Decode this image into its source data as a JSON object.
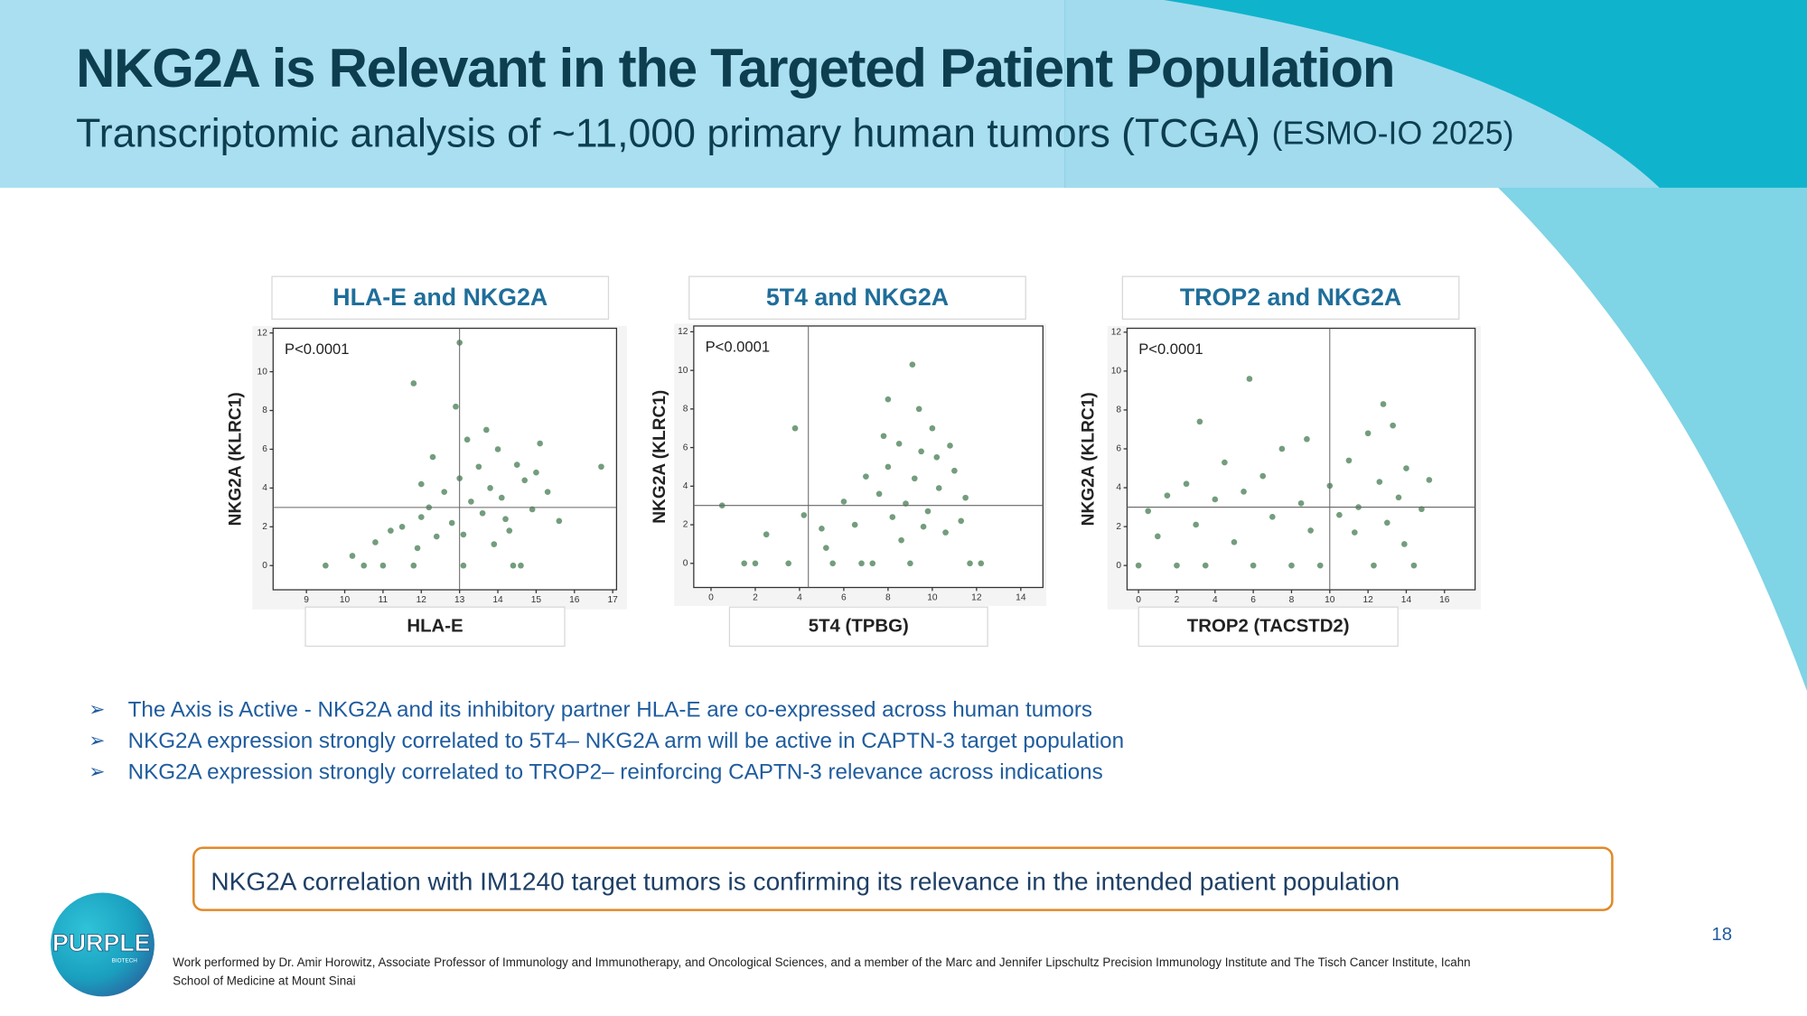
{
  "header": {
    "title": "NKG2A is Relevant in the Targeted Patient Population",
    "subtitle": "Transcriptomic analysis of ~11,000 primary human tumors (TCGA)",
    "subtitle_note": "(ESMO-IO 2025)"
  },
  "chart_data": [
    {
      "type": "scatter",
      "title": "HLA-E and NKG2A",
      "x_label": "HLA-E",
      "y_label": "NKG2A (KLRC1)",
      "annotation": "P<0.0001",
      "color": "#5b8c66",
      "xlim": [
        8.13,
        17.1
      ],
      "ylim": [
        -1.25,
        12.24
      ],
      "xticks": [
        9,
        10,
        11,
        12,
        13,
        14,
        15,
        16,
        17
      ],
      "yticks": [
        0,
        2,
        4,
        6,
        8,
        10,
        12
      ],
      "thresholds": {
        "x": 13,
        "y": 3
      },
      "x": [
        9.5,
        10.2,
        10.8,
        11.2,
        11.5,
        11.8,
        12.0,
        12.2,
        12.4,
        12.6,
        12.8,
        13.0,
        13.1,
        13.3,
        13.5,
        13.6,
        13.8,
        14.0,
        14.1,
        14.3,
        14.5,
        14.7,
        14.9,
        15.1,
        15.3,
        15.6,
        11.0,
        12.3,
        13.2,
        13.9,
        14.6,
        15.0,
        12.9,
        13.7,
        14.4,
        10.5,
        11.8,
        13.0,
        14.2,
        12.0,
        16.7,
        11.9,
        13.1
      ],
      "values": [
        0,
        0.5,
        1.2,
        1.8,
        2.0,
        0,
        2.5,
        3.0,
        1.5,
        3.8,
        2.2,
        4.5,
        0,
        3.3,
        5.1,
        2.7,
        4.0,
        6.0,
        3.5,
        1.8,
        5.2,
        4.4,
        2.9,
        6.3,
        3.8,
        2.3,
        0,
        5.6,
        6.5,
        1.1,
        0,
        4.8,
        8.2,
        7.0,
        0,
        0,
        9.4,
        11.5,
        2.4,
        4.2,
        5.1,
        0.9,
        1.6
      ]
    },
    {
      "type": "scatter",
      "title": "5T4 and NKG2A",
      "x_label": "5T4 (TPBG)",
      "y_label": "NKG2A (KLRC1)",
      "annotation": "P<0.0001",
      "color": "#5b8c66",
      "xlim": [
        -0.78,
        15.0
      ],
      "ylim": [
        -1.25,
        12.3
      ],
      "xticks": [
        0,
        2,
        4,
        6,
        8,
        10,
        12,
        14
      ],
      "yticks": [
        0,
        2,
        4,
        6,
        8,
        10,
        12
      ],
      "thresholds": {
        "x": 4.4,
        "y": 3
      },
      "x": [
        0.5,
        1.5,
        2.5,
        3.5,
        4.2,
        5.0,
        5.5,
        6.0,
        6.5,
        7.0,
        7.3,
        7.6,
        8.0,
        8.2,
        8.5,
        8.8,
        9.0,
        9.2,
        9.5,
        9.8,
        10.0,
        10.3,
        10.6,
        11.0,
        11.3,
        11.7,
        12.2,
        7.8,
        8.6,
        9.4,
        10.2,
        3.8,
        6.8,
        9.1,
        11.5,
        8.0,
        10.8,
        5.2,
        9.6,
        2.0
      ],
      "values": [
        3,
        0,
        1.5,
        0,
        2.5,
        1.8,
        0,
        3.2,
        2.0,
        4.5,
        0,
        3.6,
        5.0,
        2.4,
        6.2,
        3.1,
        0,
        4.4,
        5.8,
        2.7,
        7.0,
        3.9,
        1.6,
        4.8,
        2.2,
        0,
        0,
        6.6,
        1.2,
        8.0,
        5.5,
        7.0,
        0,
        10.3,
        3.4,
        8.5,
        6.1,
        0.8,
        1.9,
        0
      ]
    },
    {
      "type": "scatter",
      "title": "TROP2 and NKG2A",
      "x_label": "TROP2 (TACSTD2)",
      "y_label": "NKG2A (KLRC1)",
      "annotation": "P<0.0001",
      "color": "#5b8c66",
      "xlim": [
        -0.6,
        17.6
      ],
      "ylim": [
        -1.25,
        12.2
      ],
      "xticks": [
        0,
        2,
        4,
        6,
        8,
        10,
        12,
        14,
        16
      ],
      "yticks": [
        0,
        2,
        4,
        6,
        8,
        10,
        12
      ],
      "thresholds": {
        "x": 10,
        "y": 3
      },
      "x": [
        0,
        0.5,
        1.0,
        1.5,
        2.0,
        2.5,
        3.0,
        3.5,
        4.0,
        4.5,
        5.0,
        5.5,
        6.0,
        6.5,
        7.0,
        7.5,
        8.0,
        8.5,
        9.0,
        9.5,
        10.0,
        10.5,
        11.0,
        11.5,
        12.0,
        12.3,
        12.6,
        13.0,
        13.3,
        13.6,
        14.0,
        14.4,
        14.8,
        15.2,
        3.2,
        5.8,
        8.8,
        12.8,
        13.9,
        11.3
      ],
      "values": [
        0,
        2.8,
        1.5,
        3.6,
        0,
        4.2,
        2.1,
        0,
        3.4,
        5.3,
        1.2,
        3.8,
        0,
        4.6,
        2.5,
        6.0,
        0,
        3.2,
        1.8,
        0,
        4.1,
        2.6,
        5.4,
        3.0,
        6.8,
        0,
        4.3,
        2.2,
        7.2,
        3.5,
        5.0,
        0,
        2.9,
        4.4,
        7.4,
        9.6,
        6.5,
        8.3,
        1.1,
        1.7
      ]
    }
  ],
  "bullets": [
    "The Axis is Active - NKG2A and its inhibitory partner HLA-E are co-expressed across human tumors",
    "NKG2A expression strongly correlated to 5T4– NKG2A arm will be active in CAPTN-3 target population",
    "NKG2A expression strongly correlated to TROP2– reinforcing CAPTN-3 relevance across indications"
  ],
  "callout": "NKG2A correlation with IM1240 target tumors is confirming its relevance in the intended patient population",
  "page_number": "18",
  "logo": {
    "name": "PURPLE",
    "sub": "BIOTECH"
  },
  "footnote": [
    "Work performed by Dr. Amir Horowitz, Associate Professor of Immunology and Immunotherapy, and Oncological Sciences, and a member of the Marc and Jennifer Lipschultz Precision Immunology Institute and The Tisch Cancer Institute, Icahn",
    "School of Medicine at Mount Sinai"
  ]
}
